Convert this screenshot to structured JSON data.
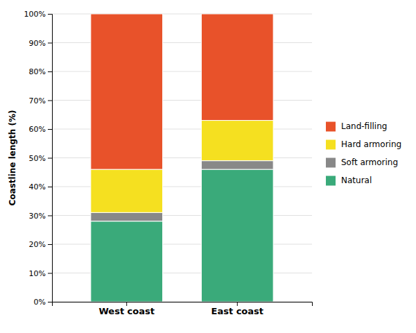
{
  "chart_data": {
    "type": "bar",
    "stacked": true,
    "categories": [
      "West coast",
      "East coast"
    ],
    "series": [
      {
        "name": "Natural",
        "color": "#3aaa7a",
        "values": [
          28,
          46
        ]
      },
      {
        "name": "Soft armoring",
        "color": "#888888",
        "values": [
          3,
          3
        ]
      },
      {
        "name": "Hard armoring",
        "color": "#f5e020",
        "values": [
          15,
          14
        ]
      },
      {
        "name": "Land-filling",
        "color": "#e8522a",
        "values": [
          54,
          37
        ]
      }
    ],
    "y_label": "Coastline length (%)",
    "ylim": [
      0,
      100
    ],
    "yticks": [
      {
        "value": 0,
        "label": "0%"
      },
      {
        "value": 10,
        "label": "10%"
      },
      {
        "value": 20,
        "label": "20%"
      },
      {
        "value": 30,
        "label": "30%"
      },
      {
        "value": 40,
        "label": "40%"
      },
      {
        "value": 50,
        "label": "50%"
      },
      {
        "value": 60,
        "label": "60%"
      },
      {
        "value": 70,
        "label": "70%"
      },
      {
        "value": 80,
        "label": "80%"
      },
      {
        "value": 90,
        "label": "90%"
      },
      {
        "value": 100,
        "label": "100%"
      }
    ],
    "grid": true,
    "legend": "right"
  }
}
